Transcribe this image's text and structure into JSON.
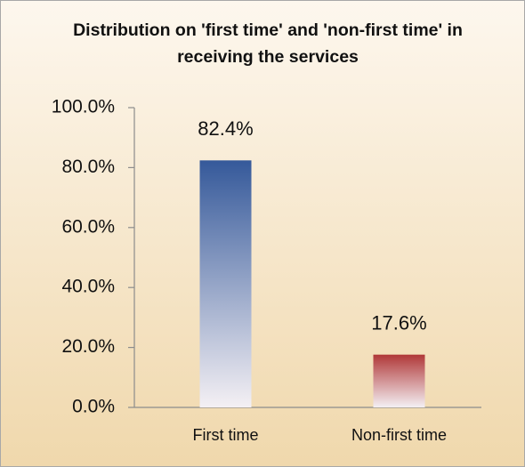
{
  "chart_data": {
    "type": "bar",
    "title": "Distribution on 'first time' and 'non-first time' in receiving the services",
    "categories": [
      "First time",
      "Non-first time"
    ],
    "values": [
      82.4,
      17.6
    ],
    "value_labels": [
      "82.4%",
      "17.6%"
    ],
    "colors": [
      "#35599a",
      "#b03838"
    ],
    "ylim": [
      0,
      100
    ],
    "yticks": [
      {
        "value": 0,
        "label": "0.0%"
      },
      {
        "value": 20,
        "label": "20.0%"
      },
      {
        "value": 40,
        "label": "40.0%"
      },
      {
        "value": 60,
        "label": "60.0%"
      },
      {
        "value": 80,
        "label": "80.0%"
      },
      {
        "value": 100,
        "label": "100.0%"
      }
    ],
    "grid": false
  }
}
